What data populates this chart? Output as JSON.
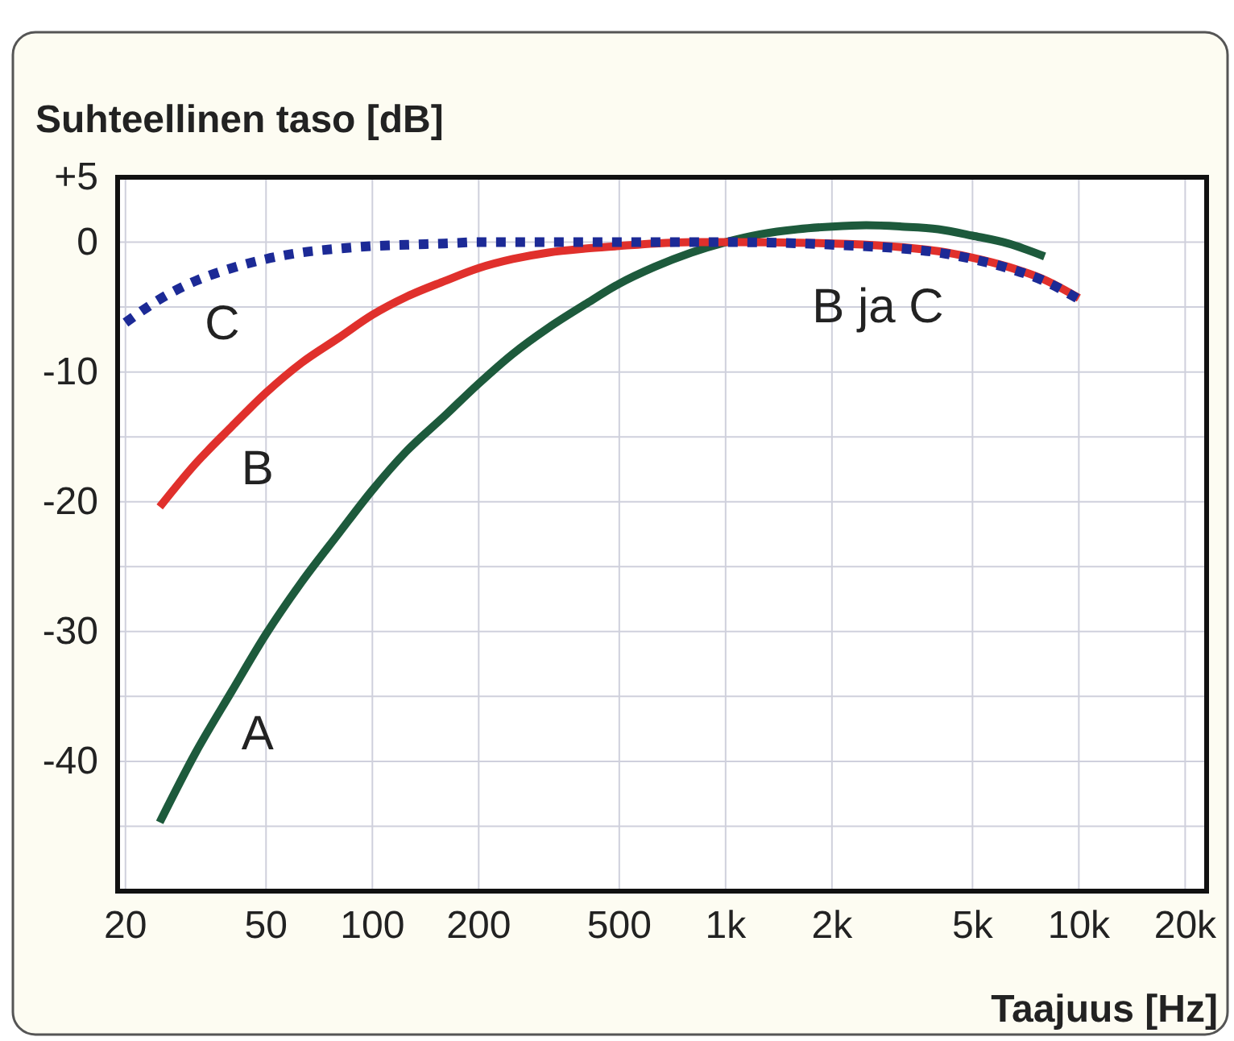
{
  "chart_data": {
    "type": "line",
    "ylabel": "Suhteellinen taso [dB]",
    "xlabel": "Taajuus [Hz]",
    "log": "x",
    "xlim": [
      19,
      23000
    ],
    "xticks": [
      20,
      50,
      100,
      200,
      500,
      {
        "value": 1000,
        "label": "1k"
      },
      {
        "value": 2000,
        "label": "2k"
      },
      {
        "value": 5000,
        "label": "5k"
      },
      {
        "value": 10000,
        "label": "10k"
      },
      {
        "value": 20000,
        "label": "20k"
      }
    ],
    "ylim": [
      -50,
      5
    ],
    "yticks": [
      {
        "value": 5,
        "label": "+5"
      },
      0,
      {
        "value": -5,
        "label": null
      },
      -10,
      {
        "value": -15,
        "label": null
      },
      -20,
      {
        "value": -25,
        "label": null
      },
      -30,
      {
        "value": -35,
        "label": null
      },
      -40,
      {
        "value": -45,
        "label": null
      }
    ],
    "grid": true,
    "series": [
      {
        "name": "A",
        "color": "#1d5a3c",
        "line_style": "solid",
        "x": [
          25,
          31.5,
          40,
          50,
          63,
          80,
          100,
          125,
          160,
          200,
          250,
          315,
          400,
          500,
          630,
          800,
          1000,
          1250,
          1600,
          2000,
          2500,
          3150,
          4000,
          5000,
          6300,
          8000
        ],
        "values": [
          -44.7,
          -39.4,
          -34.6,
          -30.2,
          -26.2,
          -22.5,
          -19.1,
          -16.1,
          -13.4,
          -10.9,
          -8.6,
          -6.6,
          -4.8,
          -3.2,
          -1.9,
          -0.8,
          0,
          0.6,
          1.0,
          1.2,
          1.3,
          1.2,
          1.0,
          0.5,
          -0.1,
          -1.1
        ]
      },
      {
        "name": "B",
        "color": "#e0302c",
        "line_style": "solid",
        "x": [
          25,
          31.5,
          40,
          50,
          63,
          80,
          100,
          125,
          160,
          200,
          250,
          315,
          400,
          500,
          630,
          800,
          1000,
          2000,
          4000,
          5000,
          6300,
          8000,
          10000
        ],
        "values": [
          -20.4,
          -17.1,
          -14.2,
          -11.6,
          -9.3,
          -7.4,
          -5.6,
          -4.2,
          -3.0,
          -2.0,
          -1.3,
          -0.8,
          -0.5,
          -0.3,
          -0.1,
          0,
          0,
          -0.1,
          -0.7,
          -1.2,
          -1.9,
          -2.9,
          -4.3
        ]
      },
      {
        "name": "C",
        "color": "#1c2a96",
        "line_style": "dotted",
        "x": [
          20,
          25,
          31.5,
          40,
          50,
          63,
          80,
          100,
          125,
          160,
          200,
          500,
          1000,
          2000,
          4000,
          5000,
          6300,
          8000,
          10000
        ],
        "values": [
          -6.2,
          -4.4,
          -3.0,
          -2.0,
          -1.3,
          -0.8,
          -0.5,
          -0.3,
          -0.2,
          -0.1,
          0,
          0,
          0,
          -0.2,
          -0.8,
          -1.3,
          -2.0,
          -3.0,
          -4.4
        ]
      }
    ],
    "annotations": [
      "B ja C"
    ]
  }
}
